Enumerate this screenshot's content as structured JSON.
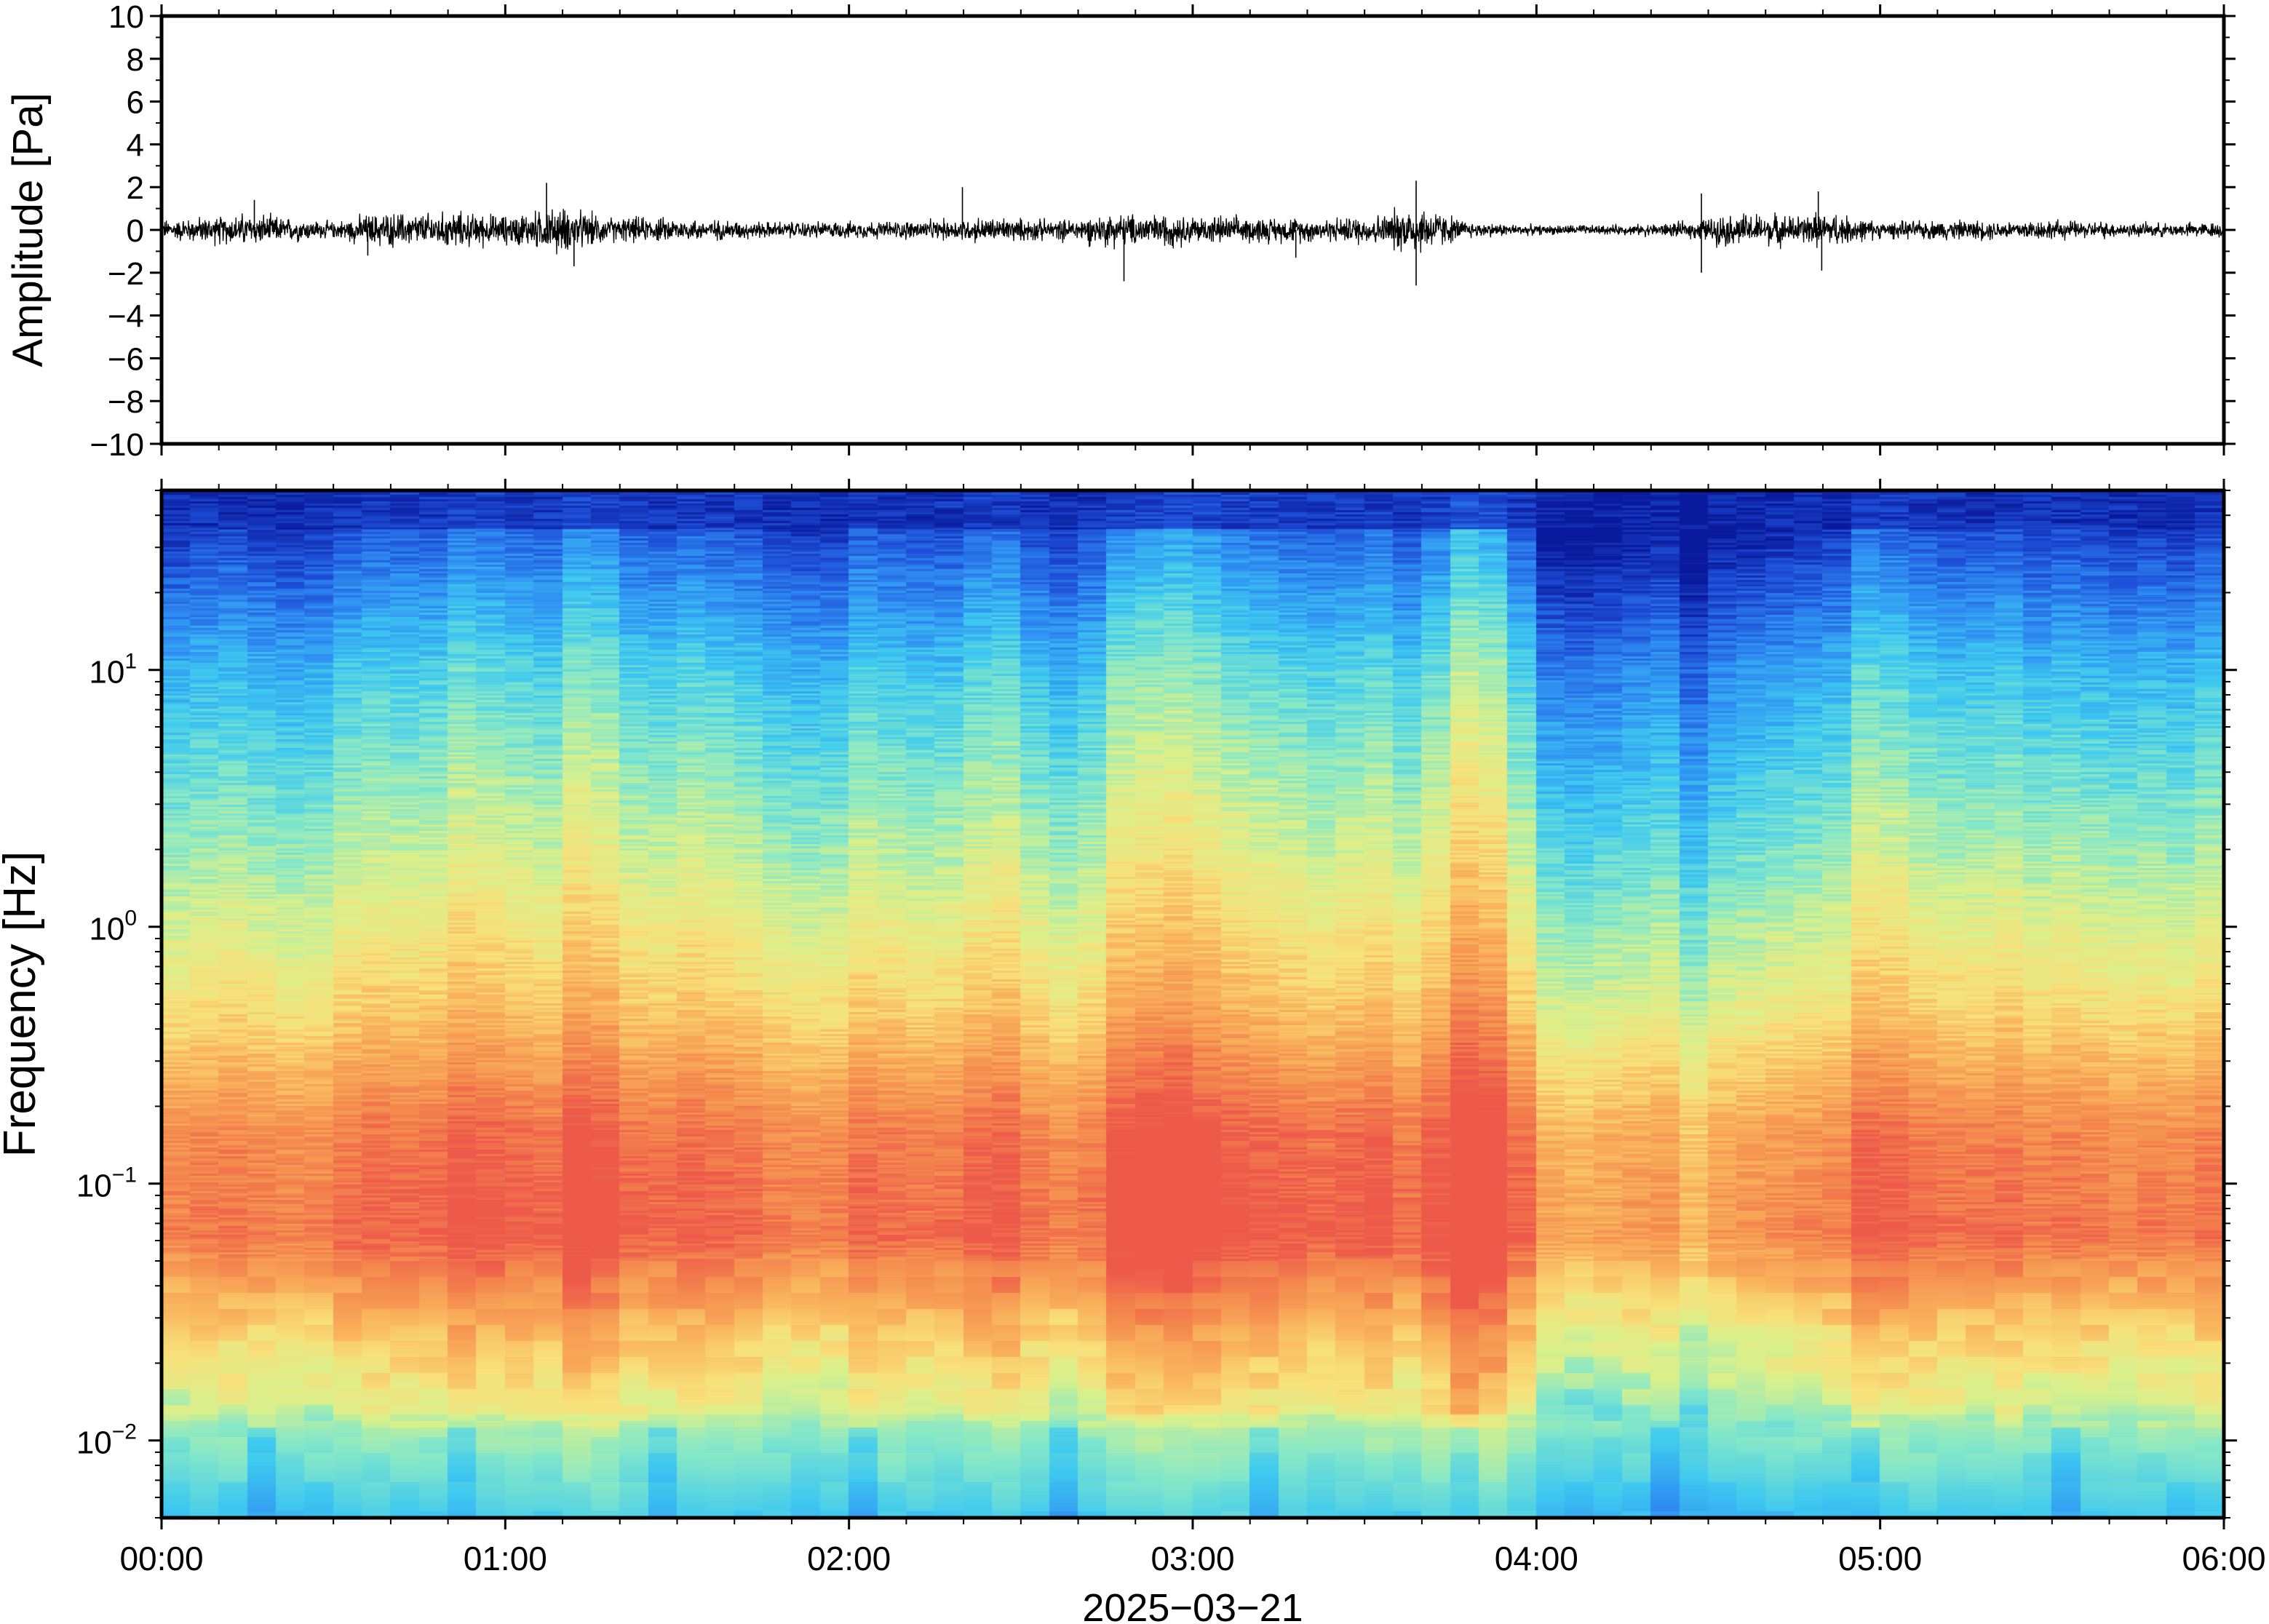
{
  "chart_data": [
    {
      "type": "line",
      "panel": "waveform",
      "ylabel": "Amplitude [Pa]",
      "ylim": [
        -10,
        10
      ],
      "yticks": [
        {
          "value": 10,
          "label": "10"
        },
        {
          "value": 8,
          "label": "8"
        },
        {
          "value": 6,
          "label": "6"
        },
        {
          "value": 4,
          "label": "4"
        },
        {
          "value": 2,
          "label": "2"
        },
        {
          "value": 0,
          "label": "0"
        },
        {
          "value": -2,
          "label": "−2"
        },
        {
          "value": -4,
          "label": "−4"
        },
        {
          "value": -6,
          "label": "−6"
        },
        {
          "value": -8,
          "label": "−8"
        },
        {
          "value": -10,
          "label": "−10"
        }
      ],
      "xlim_hours": [
        0,
        6
      ],
      "envelope_hourly": {
        "x_hours": [
          0.0,
          0.25,
          0.5,
          0.6,
          0.85,
          1.0,
          1.15,
          1.3,
          1.5,
          1.75,
          2.0,
          2.25,
          2.4,
          2.6,
          2.75,
          2.9,
          3.1,
          3.4,
          3.55,
          3.65,
          3.8,
          4.0,
          4.25,
          4.45,
          4.55,
          4.75,
          4.85,
          5.0,
          5.2,
          5.5,
          5.8,
          6.0
        ],
        "peak_pa": [
          0.6,
          1.0,
          0.5,
          1.0,
          1.1,
          0.9,
          1.4,
          0.8,
          0.7,
          0.5,
          0.5,
          0.6,
          0.8,
          0.6,
          1.0,
          1.0,
          0.8,
          0.7,
          1.0,
          1.6,
          0.5,
          0.3,
          0.3,
          0.5,
          1.0,
          0.9,
          1.1,
          0.5,
          0.6,
          0.6,
          0.4,
          0.5
        ]
      },
      "spikes": [
        {
          "x_hours": 0.27,
          "y": 1.4
        },
        {
          "x_hours": 1.12,
          "y": 2.2
        },
        {
          "x_hours": 1.2,
          "y": -1.7
        },
        {
          "x_hours": 2.33,
          "y": 2.0
        },
        {
          "x_hours": 2.8,
          "y": -2.4
        },
        {
          "x_hours": 3.65,
          "y": 2.3
        },
        {
          "x_hours": 3.65,
          "y": -2.6
        },
        {
          "x_hours": 4.48,
          "y": 1.7
        },
        {
          "x_hours": 4.48,
          "y": -2.0
        },
        {
          "x_hours": 4.82,
          "y": 1.8
        },
        {
          "x_hours": 4.83,
          "y": -1.9
        },
        {
          "x_hours": 0.6,
          "y": -1.2
        },
        {
          "x_hours": 3.3,
          "y": -1.3
        }
      ]
    },
    {
      "type": "heatmap",
      "panel": "spectrogram",
      "ylabel": "Frequency [Hz]",
      "yscale": "log",
      "ylim_hz": [
        0.005,
        50
      ],
      "yticks": [
        {
          "value": 0.01,
          "base": "10",
          "exp": "−2"
        },
        {
          "value": 0.1,
          "base": "10",
          "exp": "−1"
        },
        {
          "value": 1,
          "base": "10",
          "exp": "0"
        },
        {
          "value": 10,
          "base": "10",
          "exp": "1"
        }
      ],
      "xlabel": "2025−03−21",
      "xlim_hours": [
        0,
        6
      ],
      "xticks": [
        {
          "value": 0,
          "label": "00:00"
        },
        {
          "value": 1,
          "label": "01:00"
        },
        {
          "value": 2,
          "label": "02:00"
        },
        {
          "value": 3,
          "label": "03:00"
        },
        {
          "value": 4,
          "label": "04:00"
        },
        {
          "value": 5,
          "label": "05:00"
        },
        {
          "value": 6,
          "label": "06:00"
        }
      ],
      "colormap": [
        "#0a1a9c",
        "#1e4fd8",
        "#2f8ff2",
        "#3ec9f0",
        "#86e8c8",
        "#d8f08c",
        "#f8e07a",
        "#f9b25c",
        "#f48a4e",
        "#ee5a4a"
      ],
      "time_bins": 72,
      "column_brightness": [
        0.1,
        0.15,
        0.18,
        0.12,
        0.08,
        0.1,
        0.25,
        0.3,
        0.28,
        0.3,
        0.45,
        0.4,
        0.35,
        0.3,
        0.55,
        0.5,
        0.3,
        0.28,
        0.35,
        0.3,
        0.25,
        0.15,
        0.1,
        0.12,
        0.3,
        0.25,
        0.2,
        0.22,
        0.35,
        0.4,
        0.2,
        0.1,
        0.2,
        0.55,
        0.6,
        0.65,
        0.55,
        0.45,
        0.4,
        0.35,
        0.3,
        0.35,
        0.4,
        0.25,
        0.45,
        0.8,
        0.7,
        0.3,
        -0.15,
        -0.2,
        -0.15,
        -0.1,
        -0.05,
        -0.3,
        -0.1,
        -0.05,
        0.0,
        0.05,
        0.1,
        0.4,
        0.35,
        0.25,
        0.2,
        0.2,
        0.25,
        0.15,
        0.2,
        0.15,
        0.1,
        0.15,
        0.1,
        0.2
      ]
    }
  ]
}
